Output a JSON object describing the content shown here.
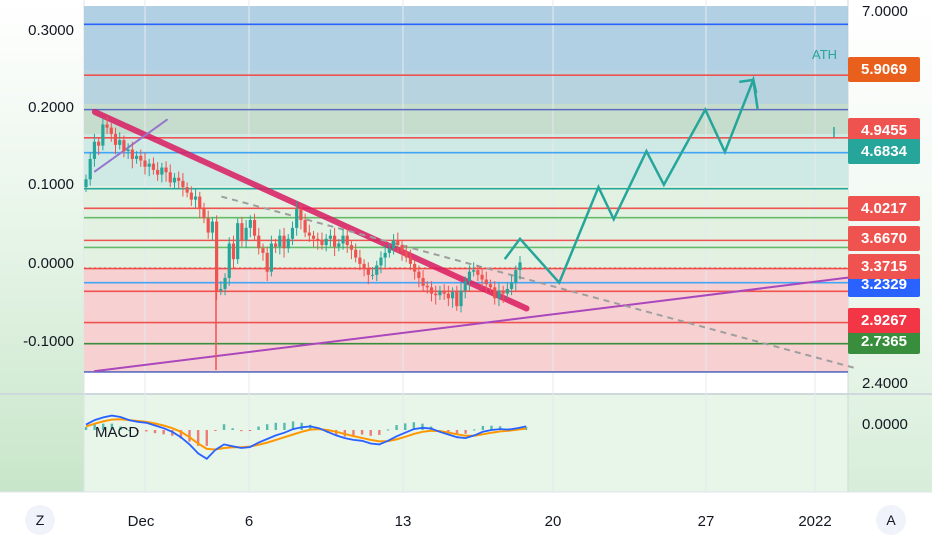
{
  "chart_data": {
    "type": "line",
    "left_axis": {
      "ticks": [
        {
          "label": "0.3000",
          "value": 0.3
        },
        {
          "label": "0.2000",
          "value": 0.2
        },
        {
          "label": "0.1000",
          "value": 0.1
        },
        {
          "label": "0.0000",
          "value": 0.0
        },
        {
          "label": "-0.1000",
          "value": -0.1
        }
      ]
    },
    "right_axis": {
      "ticks": [
        {
          "label": "7.0000",
          "value": 7.0
        },
        {
          "label": "2.4000",
          "value": 2.4
        }
      ],
      "price_tags": [
        {
          "label": "5.9069",
          "value": 5.9069,
          "color": "#e8601c"
        },
        {
          "label": "4.9455",
          "value": 4.9455,
          "color": "#ef5350"
        },
        {
          "label": "4.6834",
          "value": 4.6834,
          "color": "#26a69a"
        },
        {
          "label": "4.0217",
          "value": 4.0217,
          "color": "#ef5350"
        },
        {
          "label": "3.6670",
          "value": 3.667,
          "color": "#ef5350"
        },
        {
          "label": "3.3715",
          "value": 3.3715,
          "color": "#ef5350"
        },
        {
          "label": "3.2329",
          "value": 3.2329,
          "color": "#2962ff"
        },
        {
          "label": "2.9267",
          "value": 2.9267,
          "color": "#f23645"
        },
        {
          "label": "2.7365",
          "value": 2.7365,
          "color": "#388e3c"
        }
      ]
    },
    "x_axis": {
      "ticks": [
        {
          "label": "Dec",
          "day": 1
        },
        {
          "label": "6",
          "day": 6
        },
        {
          "label": "13",
          "day": 13
        },
        {
          "label": "20",
          "day": 20
        },
        {
          "label": "27",
          "day": 27
        },
        {
          "label": "2022",
          "day": 32
        }
      ]
    },
    "candles_close": [
      0.112,
      0.138,
      0.16,
      0.155,
      0.182,
      0.178,
      0.17,
      0.156,
      0.162,
      0.148,
      0.15,
      0.138,
      0.142,
      0.136,
      0.128,
      0.132,
      0.124,
      0.118,
      0.127,
      0.121,
      0.108,
      0.114,
      0.11,
      0.102,
      0.095,
      0.086,
      0.09,
      0.074,
      0.062,
      0.044,
      0.058,
      -0.03,
      -0.028,
      -0.014,
      0.03,
      0.01,
      0.056,
      0.034,
      0.05,
      0.06,
      0.04,
      0.024,
      0.018,
      -0.006,
      0.03,
      0.026,
      0.04,
      0.024,
      0.036,
      0.05,
      0.074,
      0.06,
      0.044,
      0.04,
      0.036,
      0.034,
      0.028,
      0.036,
      0.04,
      0.026,
      0.03,
      0.04,
      0.028,
      0.022,
      0.012,
      0.004,
      -0.002,
      -0.01,
      -0.01,
      0.002,
      0.012,
      0.018,
      0.024,
      0.034,
      0.028,
      0.02,
      0.012,
      0.004,
      -0.006,
      -0.014,
      -0.024,
      -0.026,
      -0.034,
      -0.036,
      -0.03,
      -0.034,
      -0.04,
      -0.032,
      -0.05,
      -0.03,
      -0.018,
      -0.006,
      -0.004,
      -0.01,
      -0.016,
      -0.022,
      -0.026,
      -0.04,
      -0.03,
      -0.034,
      -0.028,
      -0.02,
      -0.004,
      0.006
    ],
    "projection_path": [
      {
        "day": 18.8,
        "value": 0.01
      },
      {
        "day": 19.5,
        "value": 0.036
      },
      {
        "day": 21.3,
        "value": -0.02
      },
      {
        "day": 23.1,
        "value": 0.102
      },
      {
        "day": 23.8,
        "value": 0.061
      },
      {
        "day": 25.3,
        "value": 0.148
      },
      {
        "day": 26.1,
        "value": 0.105
      },
      {
        "day": 28.0,
        "value": 0.201
      },
      {
        "day": 28.9,
        "value": 0.147
      },
      {
        "day": 30.2,
        "value": 0.239
      },
      {
        "day": 30.4,
        "value": 0.202
      }
    ],
    "trendlines": [
      {
        "name": "",
        "from": {
          "day": 0.0,
          "value": 0.198
        },
        "to": {
          "day": 19.8,
          "value": -0.053
        },
        "color": "#d81b60"
      },
      {
        "name": "",
        "from": {
          "day": 0.0,
          "value": -0.133
        },
        "to": {
          "day": 35.0,
          "value": -0.012
        },
        "color": "#ab47bc"
      },
      {
        "name": "",
        "from": {
          "day": 0.0,
          "value": 0.122
        },
        "to": {
          "day": 3.3,
          "value": 0.188
        },
        "color": "#9575cd"
      }
    ],
    "dashed_line": {
      "from": {
        "day": 5.8,
        "value": 0.09
      },
      "to": {
        "day": 35.0,
        "value": -0.13
      },
      "color": "#9e9e9e"
    },
    "horizontal_levels": [
      {
        "value": 0.31,
        "color": "#2962ff"
      },
      {
        "value": 0.245,
        "color": "#ef5350"
      },
      {
        "value": 0.201,
        "color": "#5c6bc0"
      },
      {
        "value": 0.165,
        "color": "#ef5350"
      },
      {
        "value": 0.146,
        "color": "#42a5f5"
      },
      {
        "value": 0.1,
        "color": "#26a69a"
      },
      {
        "value": 0.075,
        "color": "#ef5350"
      },
      {
        "value": 0.063,
        "color": "#66bb6a"
      },
      {
        "value": 0.034,
        "color": "#ef5350"
      },
      {
        "value": 0.025,
        "color": "#66bb6a"
      },
      {
        "value": -0.002,
        "color": "#ef5350"
      },
      {
        "value": -0.02,
        "color": "#42a5f5"
      },
      {
        "value": -0.031,
        "color": "#ef5350"
      },
      {
        "value": -0.071,
        "color": "#ef5350"
      },
      {
        "value": -0.098,
        "color": "#388e3c"
      },
      {
        "value": -0.134,
        "color": "#5c6bc0"
      }
    ],
    "annotation": "ATH",
    "macd": {
      "label": "MACD",
      "zero_label": "0.0000",
      "macd_line": [
        0.3,
        0.55,
        0.7,
        0.8,
        0.72,
        0.55,
        0.45,
        0.4,
        0.25,
        0.1,
        -0.1,
        -0.4,
        -0.8,
        -1.3,
        -1.6,
        -1.1,
        -0.8,
        -0.9,
        -1.0,
        -0.95,
        -0.7,
        -0.5,
        -0.3,
        -0.15,
        0.05,
        0.15,
        0.2,
        0.1,
        -0.1,
        -0.3,
        -0.45,
        -0.55,
        -0.6,
        -0.75,
        -0.8,
        -0.6,
        -0.35,
        -0.15,
        0.05,
        0.12,
        0.08,
        -0.1,
        -0.25,
        -0.4,
        -0.45,
        -0.3,
        -0.1,
        0.0,
        0.05,
        0.02,
        0.1,
        0.2
      ],
      "signal_line": [
        0.2,
        0.35,
        0.48,
        0.58,
        0.6,
        0.55,
        0.5,
        0.45,
        0.36,
        0.25,
        0.1,
        -0.1,
        -0.4,
        -0.75,
        -1.05,
        -1.08,
        -1.0,
        -0.96,
        -0.96,
        -0.92,
        -0.82,
        -0.7,
        -0.55,
        -0.4,
        -0.25,
        -0.1,
        0.02,
        0.05,
        0.0,
        -0.1,
        -0.22,
        -0.34,
        -0.44,
        -0.55,
        -0.63,
        -0.62,
        -0.52,
        -0.38,
        -0.22,
        -0.1,
        -0.04,
        -0.06,
        -0.14,
        -0.24,
        -0.32,
        -0.32,
        -0.24,
        -0.15,
        -0.08,
        -0.04,
        0.02,
        0.08
      ]
    }
  },
  "ui": {
    "left_button": "Z",
    "right_button": "A"
  }
}
